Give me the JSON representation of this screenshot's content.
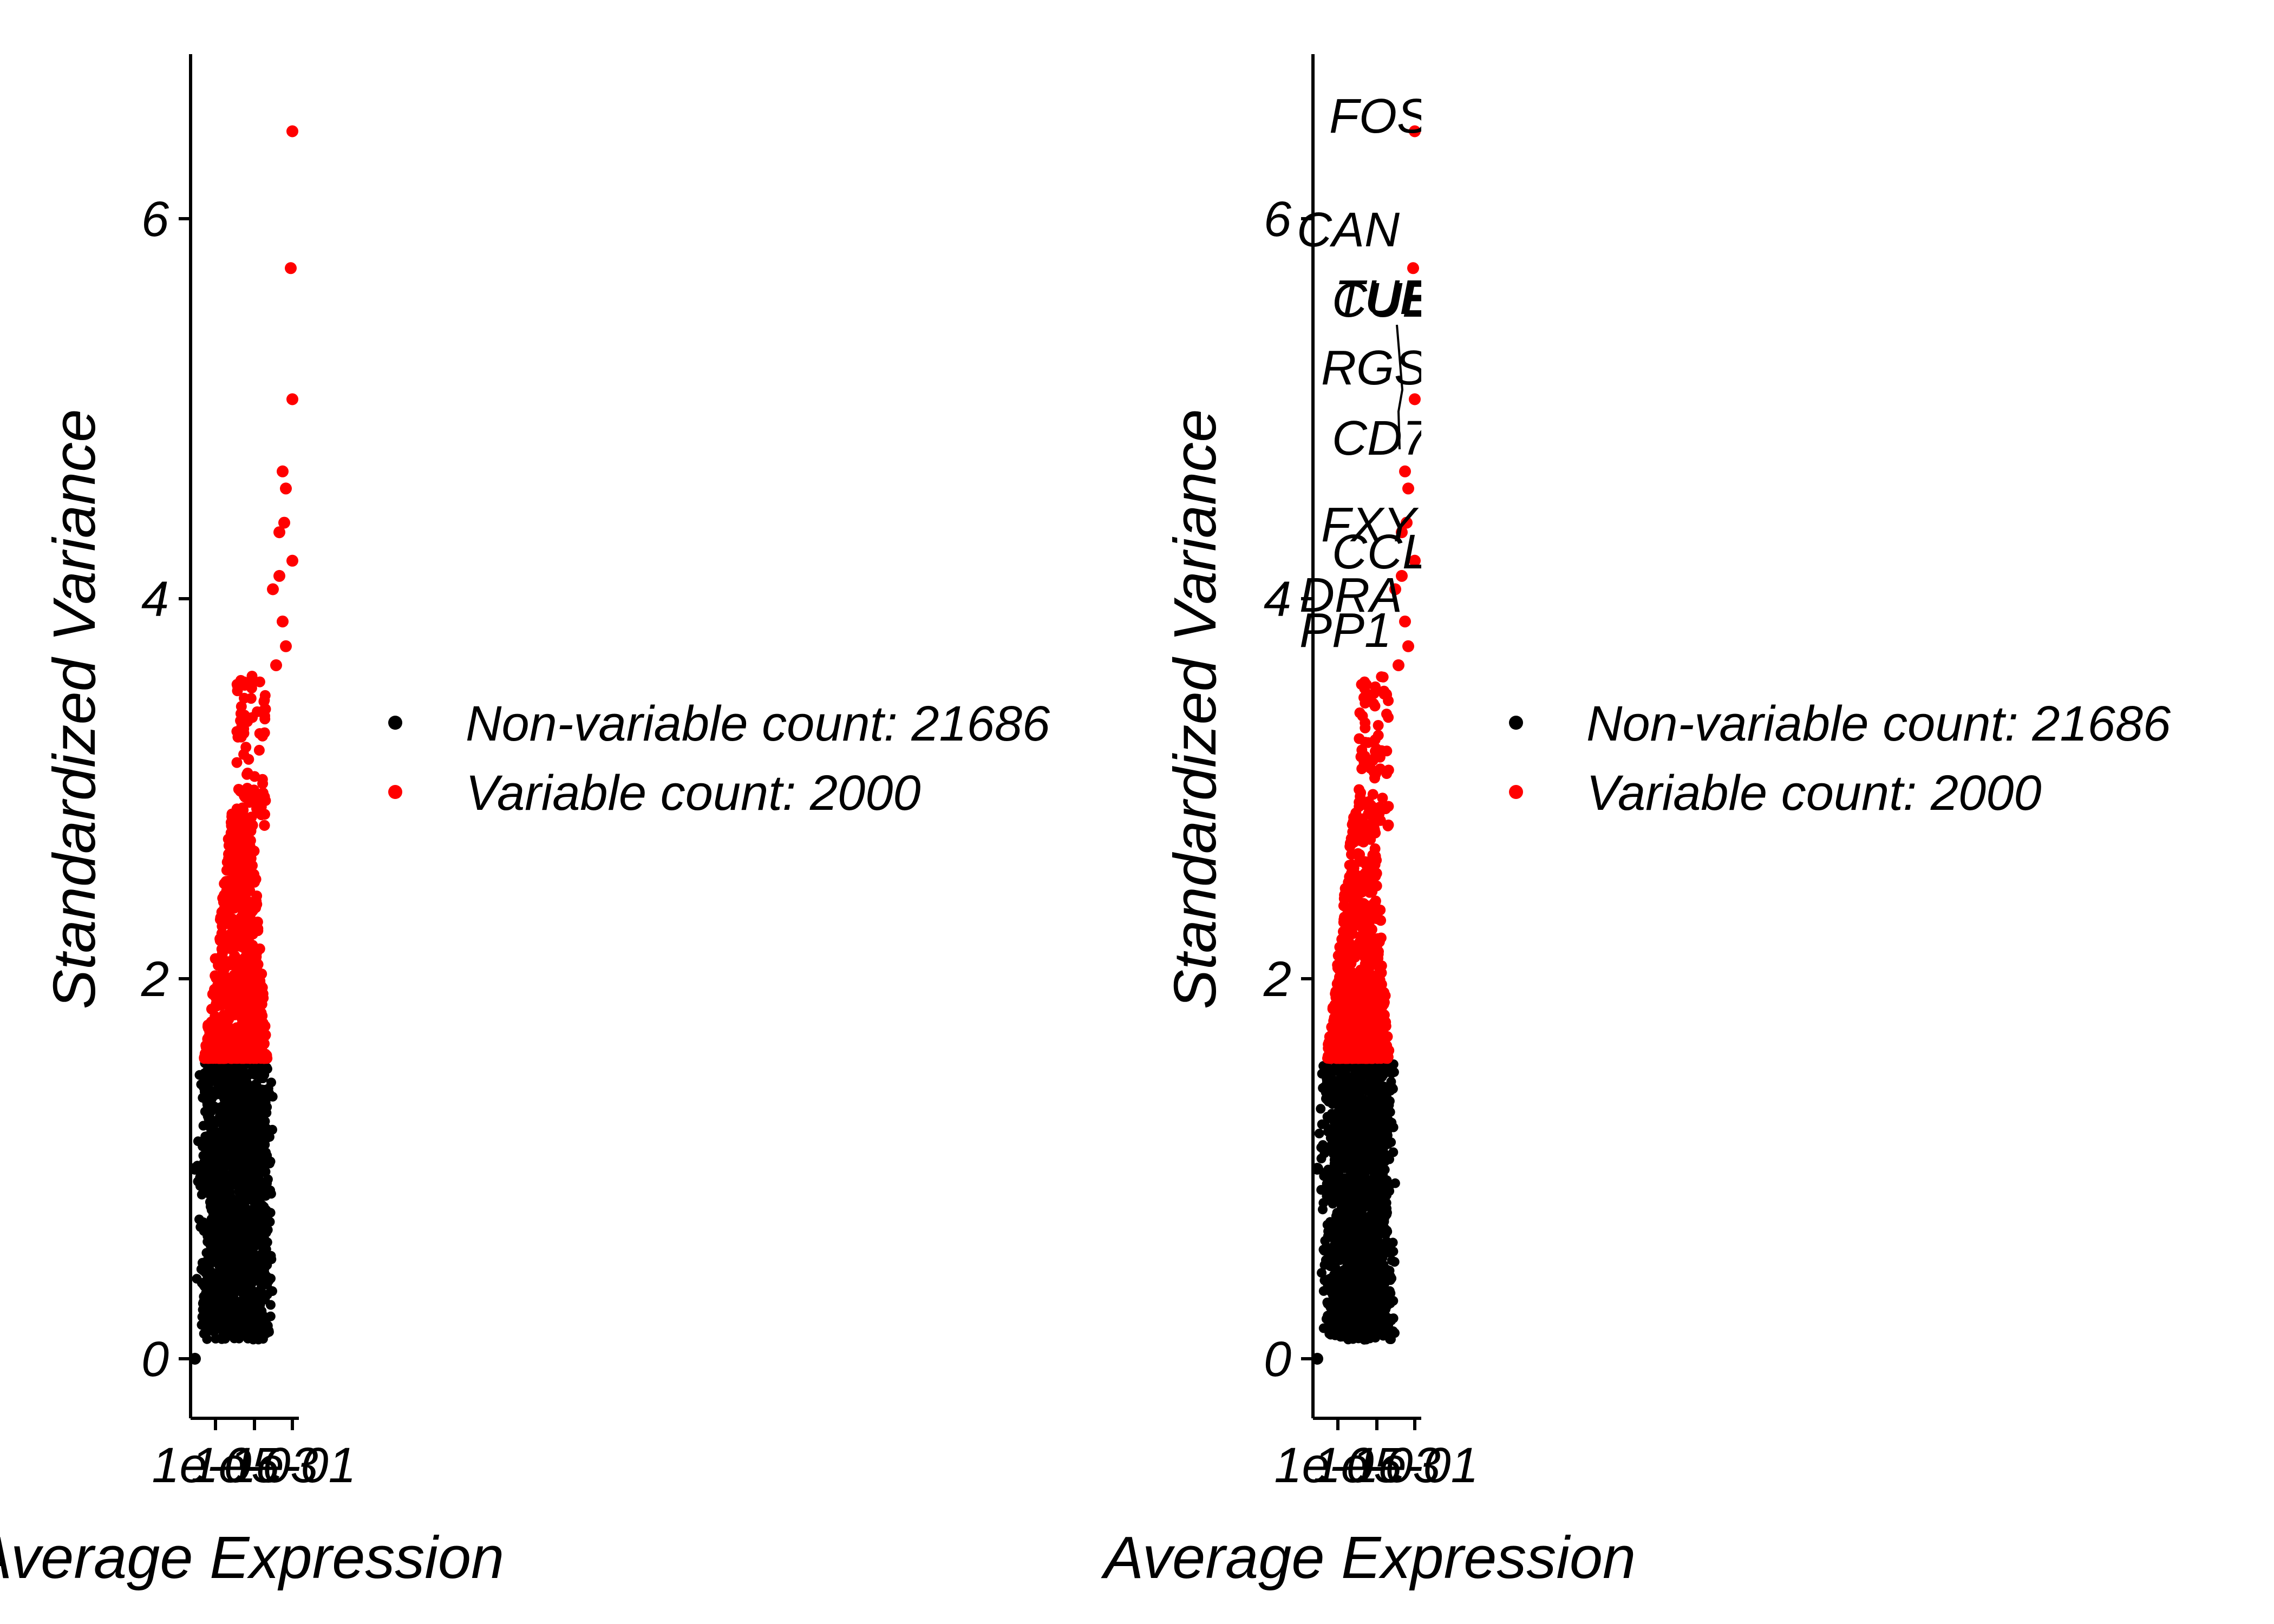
{
  "chart_data": [
    {
      "type": "scatter",
      "title": "",
      "xlabel": "Average Expression",
      "ylabel": "Standardized Variance",
      "x_scale": "log",
      "x_tick_labels": [
        "1e-05",
        "1e-03",
        "1e-01"
      ],
      "y_ticks": [
        0,
        2,
        4,
        6
      ],
      "ylim": [
        -0.3,
        6.8
      ],
      "grid": false,
      "legend_position": "right",
      "series": [
        {
          "name": "Non-variable count: 21686",
          "color": "#000000",
          "count": 21686,
          "variance_range": [
            0.1,
            1.58
          ]
        },
        {
          "name": "Variable count: 2000",
          "color": "#ff0000",
          "count": 2000,
          "variance_range": [
            1.58,
            6.46
          ]
        }
      ],
      "outliers": [
        {
          "x": 1e-06,
          "y": 1.0
        },
        {
          "x": 1e-06,
          "y": 0.0
        }
      ],
      "top_points": [
        {
          "x": 0.9,
          "y": 6.46
        },
        {
          "x": 0.85,
          "y": 5.74
        },
        {
          "x": 0.9,
          "y": 5.05
        },
        {
          "x": 0.6,
          "y": 4.67
        },
        {
          "x": 0.7,
          "y": 4.58
        },
        {
          "x": 0.65,
          "y": 4.4
        },
        {
          "x": 0.5,
          "y": 4.35
        },
        {
          "x": 0.9,
          "y": 4.2
        },
        {
          "x": 0.5,
          "y": 4.12
        },
        {
          "x": 0.3,
          "y": 4.05
        },
        {
          "x": 0.6,
          "y": 3.88
        },
        {
          "x": 0.7,
          "y": 3.75
        },
        {
          "x": 0.4,
          "y": 3.65
        }
      ],
      "gene_labels": []
    },
    {
      "type": "scatter",
      "title": "",
      "xlabel": "Average Expression",
      "ylabel": "Standardized Variance",
      "x_scale": "log",
      "x_tick_labels": [
        "1e-05",
        "1e-03",
        "1e-01"
      ],
      "y_ticks": [
        0,
        2,
        4,
        6
      ],
      "ylim": [
        -0.3,
        6.8
      ],
      "grid": false,
      "legend_position": "right",
      "series": [
        {
          "name": "Non-variable count: 21686",
          "color": "#000000",
          "count": 21686,
          "variance_range": [
            0.1,
            1.58
          ]
        },
        {
          "name": "Variable count: 2000",
          "color": "#ff0000",
          "count": 2000,
          "variance_range": [
            1.58,
            6.46
          ]
        }
      ],
      "outliers": [
        {
          "x": 1e-06,
          "y": 1.0
        },
        {
          "x": 1e-06,
          "y": 0.0
        }
      ],
      "top_points": [
        {
          "x": 0.9,
          "y": 6.46
        },
        {
          "x": 0.85,
          "y": 5.74
        },
        {
          "x": 0.9,
          "y": 5.05
        },
        {
          "x": 0.6,
          "y": 4.67
        },
        {
          "x": 0.7,
          "y": 4.58
        },
        {
          "x": 0.65,
          "y": 4.4
        },
        {
          "x": 0.5,
          "y": 4.35
        },
        {
          "x": 0.9,
          "y": 4.2
        },
        {
          "x": 0.5,
          "y": 4.12
        },
        {
          "x": 0.3,
          "y": 4.05
        },
        {
          "x": 0.6,
          "y": 3.88
        },
        {
          "x": 0.7,
          "y": 3.75
        },
        {
          "x": 0.4,
          "y": 3.65
        }
      ],
      "gene_labels": [
        "FOS",
        "CAN",
        "TUE",
        "CUE",
        "RGS",
        "CD7",
        "FXY",
        "CCL",
        "DRA",
        "PP1"
      ]
    }
  ]
}
